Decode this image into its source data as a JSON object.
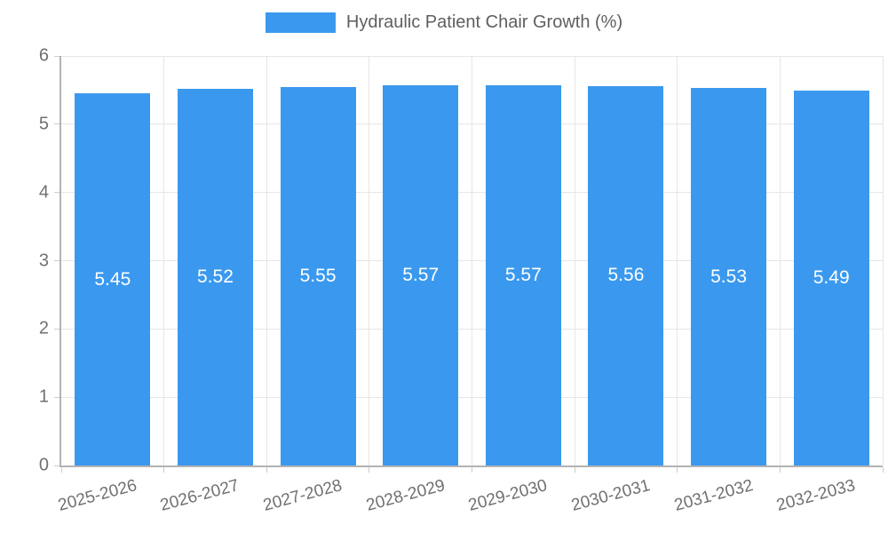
{
  "legend": {
    "label": "Hydraulic Patient Chair Growth (%)"
  },
  "chart_data": {
    "type": "bar",
    "title": "Hydraulic Patient Chair Growth (%)",
    "categories": [
      "2025-2026",
      "2026-2027",
      "2027-2028",
      "2028-2029",
      "2029-2030",
      "2030-2031",
      "2031-2032",
      "2032-2033"
    ],
    "values": [
      5.45,
      5.52,
      5.55,
      5.57,
      5.57,
      5.56,
      5.53,
      5.49
    ],
    "value_labels": [
      "5.45",
      "5.52",
      "5.55",
      "5.57",
      "5.57",
      "5.56",
      "5.53",
      "5.49"
    ],
    "xlabel": "",
    "ylabel": "",
    "ylim": [
      0,
      6
    ],
    "yticks": [
      0,
      1,
      2,
      3,
      4,
      5,
      6
    ],
    "grid": true,
    "legend_position": "top",
    "colors": {
      "bar": "#3A99EE",
      "grid": "#E6E6E6",
      "axis": "#B3B3B3",
      "tick_mark": "#CCCCCC",
      "tick_text": "#707070",
      "legend_text": "#5F5F5F",
      "value_label": "#FFFFFF",
      "background": "#FFFFFF"
    }
  }
}
